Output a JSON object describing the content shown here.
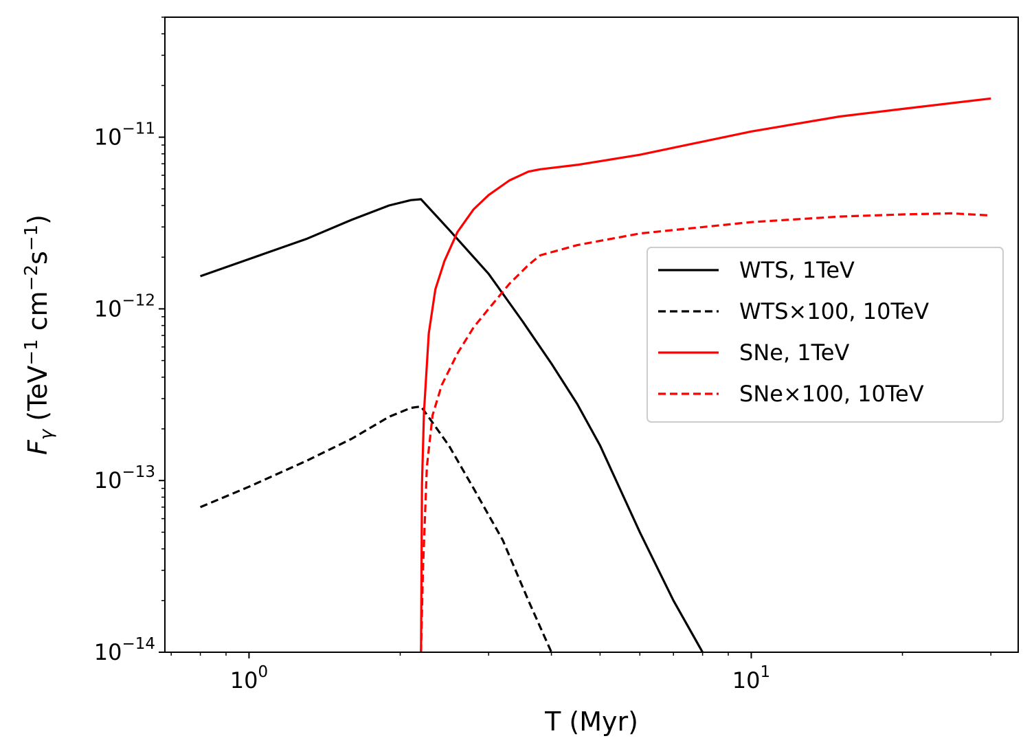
{
  "chart_data": {
    "type": "line",
    "title": "",
    "xlabel": "T (Myr)",
    "ylabel": {
      "main": "F",
      "sub": "γ",
      "open": " (TeV",
      "e1": "−1",
      "cm": " cm",
      "e2": "−2",
      "s": "s",
      "e3": "−1",
      "close": ")"
    },
    "xscale": "log",
    "yscale": "log",
    "xlim": [
      0.68,
      34
    ],
    "ylim": [
      1e-14,
      5e-11
    ],
    "xticks": [
      {
        "value": 1,
        "base": "10",
        "exp": "0"
      },
      {
        "value": 10,
        "base": "10",
        "exp": "1"
      }
    ],
    "yticks": [
      {
        "value": 1e-14,
        "base": "10",
        "exp": "−14"
      },
      {
        "value": 1e-13,
        "base": "10",
        "exp": "−13"
      },
      {
        "value": 1e-12,
        "base": "10",
        "exp": "−12"
      },
      {
        "value": 1e-11,
        "base": "10",
        "exp": "−11"
      }
    ],
    "legend_position": "center-right",
    "series": [
      {
        "name": "WTS, 1TeV",
        "color": "#000000",
        "dash": "solid",
        "x": [
          0.8,
          1.0,
          1.3,
          1.6,
          1.9,
          2.1,
          2.2,
          2.5,
          3.0,
          3.5,
          4.0,
          4.5,
          5.0,
          6.0,
          7.0,
          8.0
        ],
        "y": [
          1.55e-12,
          1.95e-12,
          2.55e-12,
          3.3e-12,
          4e-12,
          4.3e-12,
          4.35e-12,
          2.9e-12,
          1.6e-12,
          8.5e-13,
          4.8e-13,
          2.8e-13,
          1.6e-13,
          5e-14,
          2e-14,
          1e-14
        ]
      },
      {
        "name": "WTS×100, 10TeV",
        "color": "#000000",
        "dash": "dashed",
        "x": [
          0.8,
          1.0,
          1.3,
          1.6,
          1.9,
          2.1,
          2.2,
          2.5,
          2.8,
          3.2,
          3.6,
          4.0
        ],
        "y": [
          7e-14,
          9.2e-14,
          1.3e-13,
          1.75e-13,
          2.35e-13,
          2.65e-13,
          2.7e-13,
          1.6e-13,
          9e-14,
          4.5e-14,
          2e-14,
          1e-14
        ]
      },
      {
        "name": "SNe, 1TeV",
        "color": "#ff0000",
        "dash": "solid",
        "x": [
          2.2,
          2.21,
          2.23,
          2.28,
          2.35,
          2.45,
          2.6,
          2.8,
          3.0,
          3.3,
          3.6,
          3.8,
          4.5,
          6.0,
          10.0,
          15.0,
          20.0,
          30.0
        ],
        "y": [
          1e-14,
          9.5e-14,
          2.5e-13,
          7.2e-13,
          1.3e-12,
          1.9e-12,
          2.8e-12,
          3.8e-12,
          4.6e-12,
          5.6e-12,
          6.3e-12,
          6.5e-12,
          6.9e-12,
          7.9e-12,
          1.08e-11,
          1.32e-11,
          1.46e-11,
          1.68e-11
        ]
      },
      {
        "name": "SNe×100, 10TeV",
        "color": "#ff0000",
        "dash": "dashed",
        "x": [
          2.2,
          2.22,
          2.26,
          2.32,
          2.42,
          2.6,
          2.8,
          3.0,
          3.3,
          3.6,
          3.8,
          4.5,
          6.0,
          10.0,
          15.0,
          20.0,
          25.0,
          30.0
        ],
        "y": [
          1e-14,
          3e-14,
          1.2e-13,
          2.4e-13,
          3.6e-13,
          5.5e-13,
          7.8e-13,
          1e-12,
          1.4e-12,
          1.8e-12,
          2.05e-12,
          2.35e-12,
          2.75e-12,
          3.2e-12,
          3.45e-12,
          3.55e-12,
          3.6e-12,
          3.5e-12
        ]
      }
    ]
  }
}
